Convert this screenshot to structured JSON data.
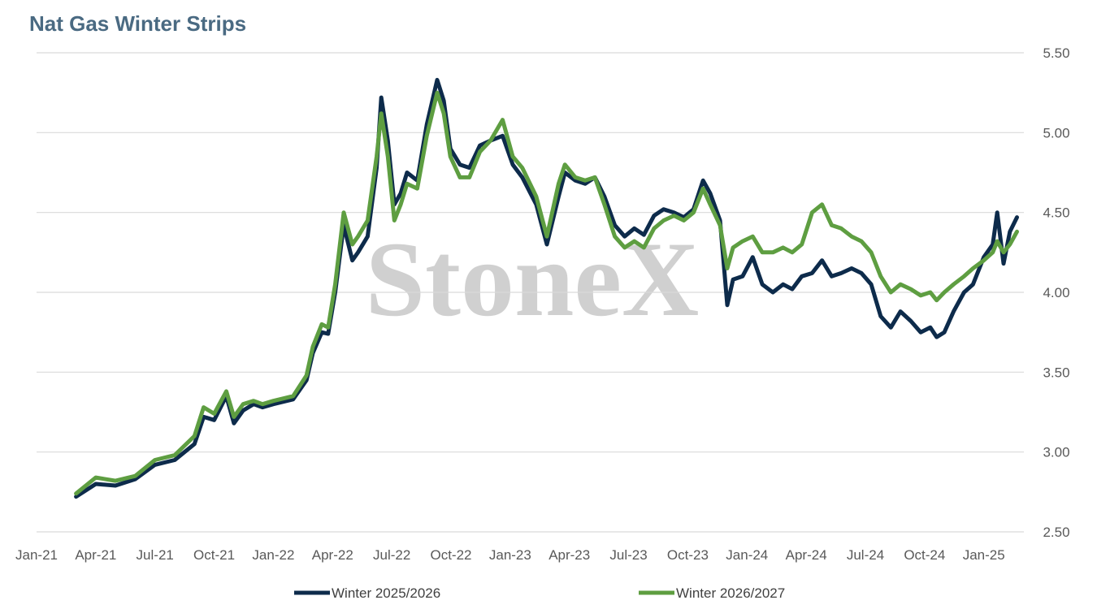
{
  "title": "Nat Gas Winter Strips",
  "watermark": "StoneX",
  "colors": {
    "series1": "#0d2b4b",
    "series2": "#5e9e41",
    "grid": "#d9d9d9"
  },
  "chart_data": {
    "type": "line",
    "title": "Nat Gas Winter Strips",
    "xlabel": "",
    "ylabel": "",
    "ylim": [
      2.5,
      5.5
    ],
    "y_ticks": [
      "5.50",
      "5.00",
      "4.50",
      "4.00",
      "3.50",
      "3.00",
      "2.50"
    ],
    "y_axis_position": "right",
    "x_ticks": [
      "Jan-21",
      "Apr-21",
      "Jul-21",
      "Oct-21",
      "Jan-22",
      "Apr-22",
      "Jul-22",
      "Oct-22",
      "Jan-23",
      "Apr-23",
      "Jul-23",
      "Oct-23",
      "Jan-24",
      "Apr-24",
      "Jul-24",
      "Oct-24",
      "Jan-25"
    ],
    "grid": true,
    "legend": "bottom",
    "series": [
      {
        "name": "Winter 2025/2026",
        "points": [
          [
            "2021-03-01",
            2.72
          ],
          [
            "2021-04-01",
            2.8
          ],
          [
            "2021-05-01",
            2.79
          ],
          [
            "2021-06-01",
            2.83
          ],
          [
            "2021-07-01",
            2.92
          ],
          [
            "2021-08-01",
            2.95
          ],
          [
            "2021-09-01",
            3.05
          ],
          [
            "2021-09-15",
            3.22
          ],
          [
            "2021-10-01",
            3.2
          ],
          [
            "2021-10-20",
            3.35
          ],
          [
            "2021-11-01",
            3.18
          ],
          [
            "2021-11-15",
            3.26
          ],
          [
            "2021-12-01",
            3.3
          ],
          [
            "2021-12-15",
            3.28
          ],
          [
            "2022-01-01",
            3.3
          ],
          [
            "2022-02-01",
            3.33
          ],
          [
            "2022-02-20",
            3.45
          ],
          [
            "2022-03-01",
            3.62
          ],
          [
            "2022-03-15",
            3.75
          ],
          [
            "2022-03-25",
            3.74
          ],
          [
            "2022-04-05",
            4.0
          ],
          [
            "2022-04-18",
            4.42
          ],
          [
            "2022-05-01",
            4.2
          ],
          [
            "2022-05-10",
            4.25
          ],
          [
            "2022-05-25",
            4.35
          ],
          [
            "2022-06-08",
            4.78
          ],
          [
            "2022-06-15",
            5.22
          ],
          [
            "2022-06-25",
            4.95
          ],
          [
            "2022-07-05",
            4.55
          ],
          [
            "2022-07-15",
            4.62
          ],
          [
            "2022-07-25",
            4.75
          ],
          [
            "2022-08-10",
            4.7
          ],
          [
            "2022-08-25",
            5.05
          ],
          [
            "2022-09-10",
            5.33
          ],
          [
            "2022-09-20",
            5.2
          ],
          [
            "2022-09-30",
            4.9
          ],
          [
            "2022-10-15",
            4.8
          ],
          [
            "2022-10-30",
            4.78
          ],
          [
            "2022-11-15",
            4.92
          ],
          [
            "2022-12-01",
            4.95
          ],
          [
            "2022-12-20",
            4.98
          ],
          [
            "2023-01-05",
            4.8
          ],
          [
            "2023-01-20",
            4.72
          ],
          [
            "2023-02-10",
            4.55
          ],
          [
            "2023-02-25",
            4.3
          ],
          [
            "2023-03-15",
            4.6
          ],
          [
            "2023-03-25",
            4.75
          ],
          [
            "2023-04-10",
            4.7
          ],
          [
            "2023-04-25",
            4.68
          ],
          [
            "2023-05-10",
            4.72
          ],
          [
            "2023-05-25",
            4.6
          ],
          [
            "2023-06-10",
            4.42
          ],
          [
            "2023-06-25",
            4.35
          ],
          [
            "2023-07-10",
            4.4
          ],
          [
            "2023-07-25",
            4.36
          ],
          [
            "2023-08-10",
            4.48
          ],
          [
            "2023-08-25",
            4.52
          ],
          [
            "2023-09-10",
            4.5
          ],
          [
            "2023-09-25",
            4.47
          ],
          [
            "2023-10-10",
            4.52
          ],
          [
            "2023-10-25",
            4.7
          ],
          [
            "2023-11-05",
            4.62
          ],
          [
            "2023-11-20",
            4.45
          ],
          [
            "2023-12-01",
            3.92
          ],
          [
            "2023-12-10",
            4.08
          ],
          [
            "2023-12-25",
            4.1
          ],
          [
            "2024-01-10",
            4.22
          ],
          [
            "2024-01-25",
            4.05
          ],
          [
            "2024-02-10",
            4.0
          ],
          [
            "2024-02-25",
            4.05
          ],
          [
            "2024-03-10",
            4.02
          ],
          [
            "2024-03-25",
            4.1
          ],
          [
            "2024-04-10",
            4.12
          ],
          [
            "2024-04-25",
            4.2
          ],
          [
            "2024-05-10",
            4.1
          ],
          [
            "2024-05-25",
            4.12
          ],
          [
            "2024-06-10",
            4.15
          ],
          [
            "2024-06-25",
            4.12
          ],
          [
            "2024-07-10",
            4.05
          ],
          [
            "2024-07-25",
            3.85
          ],
          [
            "2024-08-10",
            3.78
          ],
          [
            "2024-08-25",
            3.88
          ],
          [
            "2024-09-10",
            3.82
          ],
          [
            "2024-09-25",
            3.75
          ],
          [
            "2024-10-10",
            3.78
          ],
          [
            "2024-10-20",
            3.72
          ],
          [
            "2024-11-01",
            3.75
          ],
          [
            "2024-11-15",
            3.88
          ],
          [
            "2024-12-01",
            4.0
          ],
          [
            "2024-12-15",
            4.05
          ],
          [
            "2025-01-01",
            4.22
          ],
          [
            "2025-01-15",
            4.3
          ],
          [
            "2025-01-22",
            4.5
          ],
          [
            "2025-02-01",
            4.18
          ],
          [
            "2025-02-10",
            4.38
          ],
          [
            "2025-02-20",
            4.47
          ]
        ]
      },
      {
        "name": "Winter 2026/2027",
        "points": [
          [
            "2021-03-01",
            2.74
          ],
          [
            "2021-04-01",
            2.84
          ],
          [
            "2021-05-01",
            2.82
          ],
          [
            "2021-06-01",
            2.85
          ],
          [
            "2021-07-01",
            2.95
          ],
          [
            "2021-08-01",
            2.98
          ],
          [
            "2021-09-01",
            3.1
          ],
          [
            "2021-09-15",
            3.28
          ],
          [
            "2021-10-01",
            3.24
          ],
          [
            "2021-10-20",
            3.38
          ],
          [
            "2021-11-01",
            3.22
          ],
          [
            "2021-11-15",
            3.3
          ],
          [
            "2021-12-01",
            3.32
          ],
          [
            "2021-12-15",
            3.3
          ],
          [
            "2022-01-01",
            3.32
          ],
          [
            "2022-02-01",
            3.35
          ],
          [
            "2022-02-20",
            3.48
          ],
          [
            "2022-03-01",
            3.66
          ],
          [
            "2022-03-15",
            3.8
          ],
          [
            "2022-03-25",
            3.78
          ],
          [
            "2022-04-05",
            4.05
          ],
          [
            "2022-04-18",
            4.5
          ],
          [
            "2022-05-01",
            4.3
          ],
          [
            "2022-05-10",
            4.35
          ],
          [
            "2022-05-25",
            4.45
          ],
          [
            "2022-06-08",
            4.85
          ],
          [
            "2022-06-15",
            5.12
          ],
          [
            "2022-06-25",
            4.85
          ],
          [
            "2022-07-05",
            4.45
          ],
          [
            "2022-07-15",
            4.55
          ],
          [
            "2022-07-25",
            4.68
          ],
          [
            "2022-08-10",
            4.65
          ],
          [
            "2022-08-25",
            4.98
          ],
          [
            "2022-09-10",
            5.25
          ],
          [
            "2022-09-20",
            5.12
          ],
          [
            "2022-09-30",
            4.85
          ],
          [
            "2022-10-15",
            4.72
          ],
          [
            "2022-10-30",
            4.72
          ],
          [
            "2022-11-15",
            4.88
          ],
          [
            "2022-12-01",
            4.95
          ],
          [
            "2022-12-20",
            5.08
          ],
          [
            "2023-01-05",
            4.85
          ],
          [
            "2023-01-20",
            4.78
          ],
          [
            "2023-02-10",
            4.6
          ],
          [
            "2023-02-25",
            4.35
          ],
          [
            "2023-03-15",
            4.68
          ],
          [
            "2023-03-25",
            4.8
          ],
          [
            "2023-04-10",
            4.72
          ],
          [
            "2023-04-25",
            4.7
          ],
          [
            "2023-05-10",
            4.72
          ],
          [
            "2023-05-25",
            4.55
          ],
          [
            "2023-06-10",
            4.35
          ],
          [
            "2023-06-25",
            4.28
          ],
          [
            "2023-07-10",
            4.32
          ],
          [
            "2023-07-25",
            4.28
          ],
          [
            "2023-08-10",
            4.4
          ],
          [
            "2023-08-25",
            4.45
          ],
          [
            "2023-09-10",
            4.48
          ],
          [
            "2023-09-25",
            4.45
          ],
          [
            "2023-10-10",
            4.5
          ],
          [
            "2023-10-25",
            4.65
          ],
          [
            "2023-11-05",
            4.55
          ],
          [
            "2023-11-20",
            4.42
          ],
          [
            "2023-12-01",
            4.15
          ],
          [
            "2023-12-10",
            4.28
          ],
          [
            "2023-12-25",
            4.32
          ],
          [
            "2024-01-10",
            4.35
          ],
          [
            "2024-01-25",
            4.25
          ],
          [
            "2024-02-10",
            4.25
          ],
          [
            "2024-02-25",
            4.28
          ],
          [
            "2024-03-10",
            4.25
          ],
          [
            "2024-03-25",
            4.3
          ],
          [
            "2024-04-10",
            4.5
          ],
          [
            "2024-04-25",
            4.55
          ],
          [
            "2024-05-10",
            4.42
          ],
          [
            "2024-05-25",
            4.4
          ],
          [
            "2024-06-10",
            4.35
          ],
          [
            "2024-06-25",
            4.32
          ],
          [
            "2024-07-10",
            4.25
          ],
          [
            "2024-07-25",
            4.1
          ],
          [
            "2024-08-10",
            4.0
          ],
          [
            "2024-08-25",
            4.05
          ],
          [
            "2024-09-10",
            4.02
          ],
          [
            "2024-09-25",
            3.98
          ],
          [
            "2024-10-10",
            4.0
          ],
          [
            "2024-10-20",
            3.95
          ],
          [
            "2024-11-01",
            4.0
          ],
          [
            "2024-11-15",
            4.05
          ],
          [
            "2024-12-01",
            4.1
          ],
          [
            "2024-12-15",
            4.15
          ],
          [
            "2025-01-01",
            4.2
          ],
          [
            "2025-01-15",
            4.25
          ],
          [
            "2025-01-22",
            4.32
          ],
          [
            "2025-02-01",
            4.25
          ],
          [
            "2025-02-10",
            4.3
          ],
          [
            "2025-02-20",
            4.38
          ]
        ]
      }
    ]
  }
}
